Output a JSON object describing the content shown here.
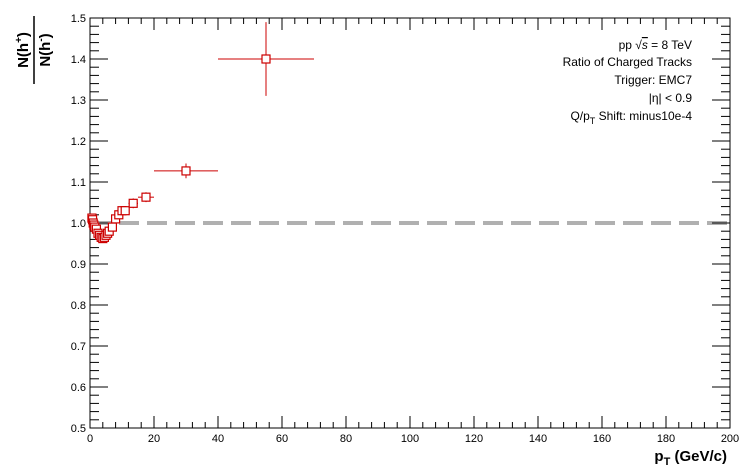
{
  "chart_data": {
    "type": "scatter",
    "title": "",
    "xlabel": {
      "main": "p",
      "sub": "T",
      "rest": " (GeV/c)"
    },
    "ylabel": {
      "num_main": "N(h",
      "num_sup": "+",
      "num_close": ")",
      "den_main": "N(h",
      "den_sup": "-",
      "den_close": ")"
    },
    "xlim": [
      0,
      200
    ],
    "ylim": [
      0.5,
      1.5
    ],
    "x_ticks": [
      0,
      20,
      40,
      60,
      80,
      100,
      120,
      140,
      160,
      180,
      200
    ],
    "x_tick_labels": [
      "0",
      "20",
      "40",
      "60",
      "80",
      "100",
      "120",
      "140",
      "160",
      "180",
      "200"
    ],
    "y_ticks": [
      0.5,
      0.6,
      0.7,
      0.8,
      0.9,
      1.0,
      1.1,
      1.2,
      1.3,
      1.4,
      1.5
    ],
    "y_tick_labels": [
      "0.5",
      "0.6",
      "0.7",
      "0.8",
      "0.9",
      "1.0",
      "1.1",
      "1.2",
      "1.3",
      "1.4",
      "1.5"
    ],
    "reference_line": {
      "y": 1.0,
      "color": "#b0b0b0",
      "style": "dashed"
    },
    "annotations": {
      "line1": {
        "pre": "pp  ",
        "sqrt": "s",
        "post": " = 8 TeV"
      },
      "line2": "Ratio of Charged Tracks",
      "line3": "Trigger: EMC7",
      "line4": "|η| < 0.9",
      "line5": {
        "main": "Q/p",
        "sub": "T",
        "post": " Shift: minus10e-4"
      }
    },
    "series": [
      {
        "color": "#cc0000",
        "marker": "open-square",
        "points": [
          {
            "x": 0.6,
            "y": 1.012,
            "xerr": 0.1,
            "yerr": 0.004
          },
          {
            "x": 0.8,
            "y": 1.008,
            "xerr": 0.1,
            "yerr": 0.004
          },
          {
            "x": 1.0,
            "y": 1.0,
            "xerr": 0.1,
            "yerr": 0.004
          },
          {
            "x": 1.2,
            "y": 0.995,
            "xerr": 0.1,
            "yerr": 0.004
          },
          {
            "x": 1.5,
            "y": 0.99,
            "xerr": 0.15,
            "yerr": 0.005
          },
          {
            "x": 2.0,
            "y": 0.985,
            "xerr": 0.25,
            "yerr": 0.005
          },
          {
            "x": 2.5,
            "y": 0.975,
            "xerr": 0.25,
            "yerr": 0.006
          },
          {
            "x": 3.0,
            "y": 0.97,
            "xerr": 0.25,
            "yerr": 0.006
          },
          {
            "x": 3.5,
            "y": 0.965,
            "xerr": 0.25,
            "yerr": 0.006
          },
          {
            "x": 4.0,
            "y": 0.962,
            "xerr": 0.25,
            "yerr": 0.007
          },
          {
            "x": 4.5,
            "y": 0.965,
            "xerr": 0.25,
            "yerr": 0.007
          },
          {
            "x": 5.0,
            "y": 0.97,
            "xerr": 0.25,
            "yerr": 0.007
          },
          {
            "x": 5.5,
            "y": 0.975,
            "xerr": 0.25,
            "yerr": 0.008
          },
          {
            "x": 6.0,
            "y": 0.98,
            "xerr": 0.25,
            "yerr": 0.008
          },
          {
            "x": 7.0,
            "y": 0.99,
            "xerr": 0.5,
            "yerr": 0.008
          },
          {
            "x": 8.0,
            "y": 1.01,
            "xerr": 0.5,
            "yerr": 0.009
          },
          {
            "x": 9.0,
            "y": 1.02,
            "xerr": 0.5,
            "yerr": 0.01
          },
          {
            "x": 10.0,
            "y": 1.03,
            "xerr": 0.5,
            "yerr": 0.01
          },
          {
            "x": 11.0,
            "y": 1.03,
            "xerr": 0.5,
            "yerr": 0.011
          },
          {
            "x": 13.5,
            "y": 1.048,
            "xerr": 1.5,
            "yerr": 0.012
          },
          {
            "x": 17.5,
            "y": 1.063,
            "xerr": 2.5,
            "yerr": 0.012
          },
          {
            "x": 30.0,
            "y": 1.127,
            "xerr": 10.0,
            "yerr": 0.018
          },
          {
            "x": 55.0,
            "y": 1.4,
            "xerr": 15.0,
            "yerr": 0.09
          }
        ]
      }
    ]
  }
}
